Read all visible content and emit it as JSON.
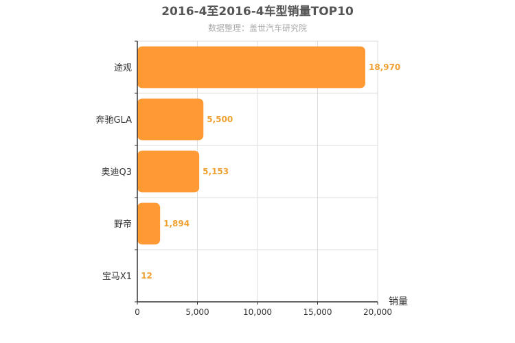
{
  "chart_data": {
    "type": "bar",
    "orientation": "horizontal",
    "title": "2016-4至2016-4车型销量TOP10",
    "subtitle": "数据整理：盖世汽车研究院",
    "categories": [
      "途观",
      "奔驰GLA",
      "奥迪Q3",
      "野帝",
      "宝马X1"
    ],
    "values": [
      18970,
      5500,
      5153,
      1894,
      12
    ],
    "value_labels": [
      "18,970",
      "5,500",
      "5,153",
      "1,894",
      "12"
    ],
    "xlabel": "销量",
    "ylabel": "",
    "xlim": [
      0,
      20000
    ],
    "x_ticks": [
      0,
      5000,
      10000,
      15000,
      20000
    ],
    "x_tick_labels": [
      "0",
      "5,000",
      "10,000",
      "15,000",
      "20,000"
    ],
    "grid": true,
    "bar_color": "#FF9933",
    "label_color": "#F0A030"
  }
}
